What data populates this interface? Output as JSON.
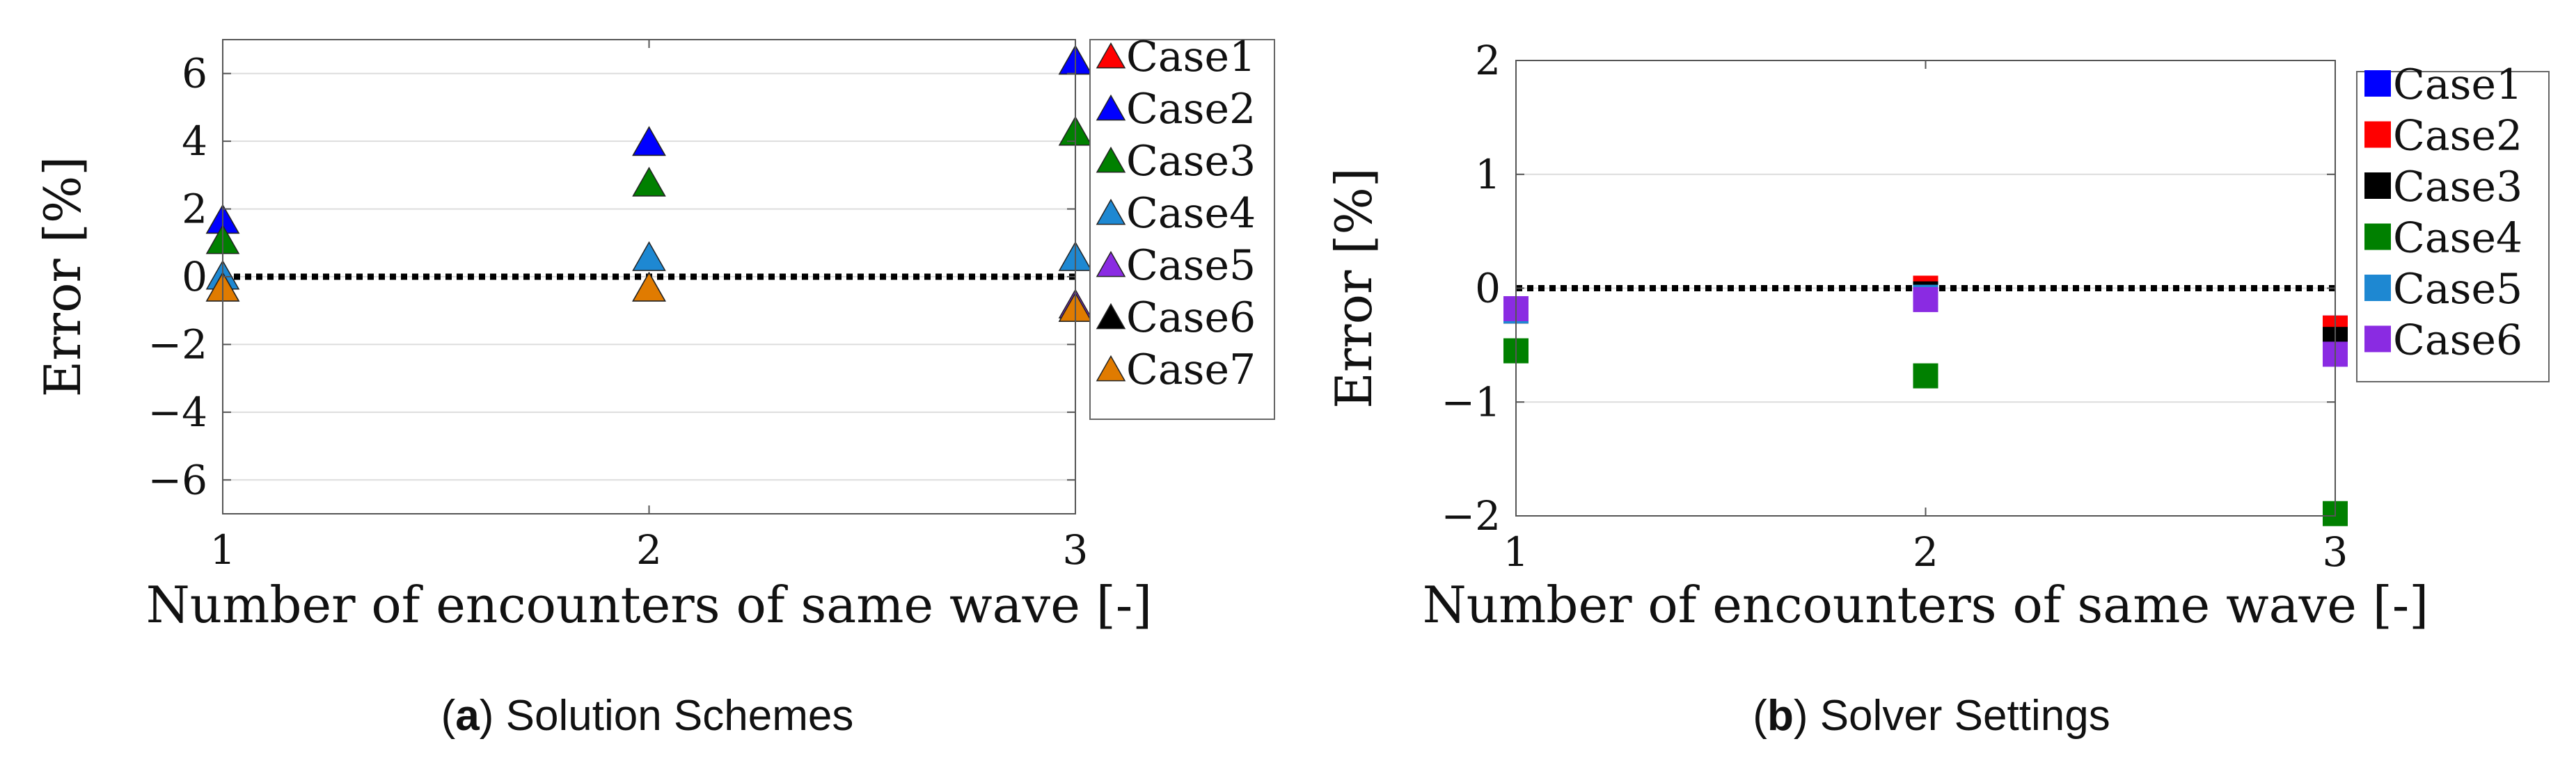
{
  "chart_data": [
    {
      "id": "a",
      "type": "scatter",
      "marker": "triangle",
      "caption_label": "a",
      "caption_text": "Solution Schemes",
      "xlabel": "Number of encounters of same wave [-]",
      "ylabel": "Error [%]",
      "xlim": [
        1,
        3
      ],
      "ylim": [
        -7,
        7
      ],
      "xticks": [
        1,
        2,
        3
      ],
      "xtick_labels": [
        "1",
        "2",
        "3"
      ],
      "yticks": [
        -6,
        -4,
        -2,
        0,
        2,
        4,
        6
      ],
      "ytick_labels": [
        "−6",
        "−4",
        "−2",
        "0",
        "2",
        "4",
        "6"
      ],
      "grid": true,
      "reference_line": 0,
      "legend_position": "outside-right",
      "series": [
        {
          "name": "Case1",
          "color": "#ff0000",
          "x": [
            1,
            2,
            3
          ],
          "y": [
            1.7,
            4.0,
            6.4
          ]
        },
        {
          "name": "Case2",
          "color": "#0000ff",
          "x": [
            1,
            2,
            3
          ],
          "y": [
            1.7,
            4.0,
            6.4
          ]
        },
        {
          "name": "Case3",
          "color": "#008000",
          "x": [
            1,
            2,
            3
          ],
          "y": [
            1.1,
            2.8,
            4.3
          ]
        },
        {
          "name": "Case4",
          "color": "#1e88d2",
          "x": [
            1,
            2,
            3
          ],
          "y": [
            0.05,
            0.6,
            0.6
          ]
        },
        {
          "name": "Case5",
          "color": "#8a2be2",
          "x": [
            1,
            2,
            3
          ],
          "y": [
            -0.3,
            -0.3,
            -0.8
          ]
        },
        {
          "name": "Case6",
          "color": "#000000",
          "x": [
            1,
            2,
            3
          ],
          "y": [
            -0.3,
            -0.3,
            -0.9
          ]
        },
        {
          "name": "Case7",
          "color": "#e07b00",
          "x": [
            1,
            2,
            3
          ],
          "y": [
            -0.3,
            -0.3,
            -0.9
          ]
        }
      ]
    },
    {
      "id": "b",
      "type": "scatter",
      "marker": "square",
      "caption_label": "b",
      "caption_text": "Solver Settings",
      "xlabel": "Number of encounters of same wave [-]",
      "ylabel": "Error [%]",
      "xlim": [
        1,
        3
      ],
      "ylim": [
        -2,
        2
      ],
      "xticks": [
        1,
        2,
        3
      ],
      "xtick_labels": [
        "1",
        "2",
        "3"
      ],
      "yticks": [
        -2,
        -1,
        0,
        1,
        2
      ],
      "ytick_labels": [
        "−2",
        "−1",
        "0",
        "1",
        "2"
      ],
      "grid": true,
      "reference_line": 0,
      "legend_position": "outside-right",
      "series": [
        {
          "name": "Case1",
          "color": "#0000ff",
          "x": [
            1,
            2,
            3
          ],
          "y": [
            -0.2,
            0.0,
            -0.35
          ]
        },
        {
          "name": "Case2",
          "color": "#ff0000",
          "x": [
            1,
            2,
            3
          ],
          "y": [
            -0.2,
            0.0,
            -0.35
          ]
        },
        {
          "name": "Case3",
          "color": "#000000",
          "x": [
            1,
            2,
            3
          ],
          "y": [
            -0.2,
            -0.05,
            -0.45
          ]
        },
        {
          "name": "Case4",
          "color": "#008000",
          "x": [
            1,
            2,
            3
          ],
          "y": [
            -0.55,
            -0.77,
            -1.98
          ]
        },
        {
          "name": "Case5",
          "color": "#1e88d2",
          "x": [
            1,
            2,
            3
          ],
          "y": [
            -0.2,
            -0.08,
            -0.58
          ]
        },
        {
          "name": "Case6",
          "color": "#8a2be2",
          "x": [
            1,
            2,
            3
          ],
          "y": [
            -0.18,
            -0.1,
            -0.58
          ]
        }
      ]
    }
  ]
}
